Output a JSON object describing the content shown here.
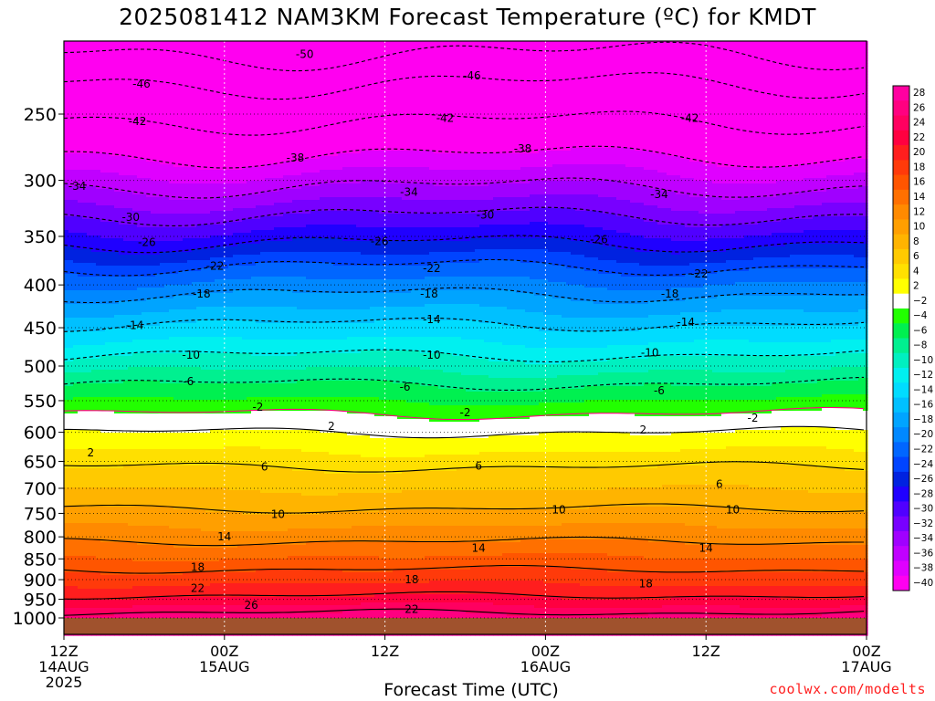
{
  "title": "2025081412 NAM3KM Forecast Temperature (ºC) for KMDT",
  "xlabel": "Forecast Time (UTC)",
  "credit": "coolwx.com/modelts",
  "chart_data": {
    "type": "heatmap",
    "title": "2025081412 NAM3KM Forecast Temperature (ºC) for KMDT",
    "xlabel": "Forecast Time (UTC)",
    "ylabel": "",
    "x_ticks": [
      {
        "hours": 0,
        "label": [
          "12Z",
          "14AUG",
          "2025"
        ]
      },
      {
        "hours": 12,
        "label": [
          "00Z",
          "15AUG"
        ]
      },
      {
        "hours": 24,
        "label": [
          "12Z"
        ]
      },
      {
        "hours": 36,
        "label": [
          "00Z",
          "16AUG"
        ]
      },
      {
        "hours": 48,
        "label": [
          "12Z"
        ]
      },
      {
        "hours": 60,
        "label": [
          "00Z",
          "17AUG"
        ]
      }
    ],
    "xlim": [
      0,
      60
    ],
    "y_ticks": [
      250,
      300,
      350,
      400,
      450,
      500,
      550,
      600,
      650,
      700,
      750,
      800,
      850,
      900,
      950,
      1000
    ],
    "ylim": [
      200,
      1025
    ],
    "y_scale": "log",
    "y_reversed": true,
    "colorbar": {
      "levels": [
        28,
        26,
        24,
        22,
        20,
        18,
        16,
        14,
        12,
        10,
        8,
        6,
        4,
        2,
        -2,
        -4,
        -6,
        -8,
        -10,
        -12,
        -14,
        -16,
        -18,
        -20,
        -22,
        -24,
        -26,
        -28,
        -30,
        -32,
        -34,
        -36,
        -38,
        -40
      ],
      "colors": [
        "#ff00a0",
        "#ff0080",
        "#ff0060",
        "#ff0040",
        "#ff1e1e",
        "#ff3a0a",
        "#ff5500",
        "#ff7000",
        "#ff8a00",
        "#ff9f00",
        "#ffb400",
        "#ffca00",
        "#ffe000",
        "#ffff00",
        "#ffffff",
        "#22ff00",
        "#00f050",
        "#00f090",
        "#00f0c0",
        "#00f0f0",
        "#00dcff",
        "#00c0ff",
        "#00a4ff",
        "#0088ff",
        "#0066ff",
        "#0044ff",
        "#0022e0",
        "#2000ff",
        "#5000ff",
        "#7800ff",
        "#a000ff",
        "#c000ff",
        "#e000ff",
        "#ff00f0"
      ]
    },
    "contours": [
      {
        "value": -50,
        "pressure": 212
      },
      {
        "value": -46,
        "pressure": 230
      },
      {
        "value": -42,
        "pressure": 255
      },
      {
        "value": -38,
        "pressure": 280
      },
      {
        "value": -34,
        "pressure": 305
      },
      {
        "value": -30,
        "pressure": 330
      },
      {
        "value": -26,
        "pressure": 356
      },
      {
        "value": -22,
        "pressure": 380
      },
      {
        "value": -18,
        "pressure": 410
      },
      {
        "value": -14,
        "pressure": 445
      },
      {
        "value": -10,
        "pressure": 485
      },
      {
        "value": -6,
        "pressure": 525
      },
      {
        "value": -2,
        "pressure": 570
      },
      {
        "value": 2,
        "pressure": 600
      },
      {
        "value": 6,
        "pressure": 660
      },
      {
        "value": 10,
        "pressure": 740
      },
      {
        "value": 14,
        "pressure": 810
      },
      {
        "value": 18,
        "pressure": 875
      },
      {
        "value": 22,
        "pressure": 940
      },
      {
        "value": 26,
        "pressure": 985
      }
    ],
    "labels": [
      {
        "text": "50",
        "hours": 18,
        "pressure": 212
      },
      {
        "text": "46",
        "hours": 5.8,
        "pressure": 230
      },
      {
        "text": "46",
        "hours": 30.5,
        "pressure": 225
      },
      {
        "text": "42",
        "hours": 5.5,
        "pressure": 255
      },
      {
        "text": "42",
        "hours": 28.5,
        "pressure": 253
      },
      {
        "text": "42",
        "hours": 46.8,
        "pressure": 253
      },
      {
        "text": "38",
        "hours": 17.3,
        "pressure": 282
      },
      {
        "text": "38",
        "hours": 34.3,
        "pressure": 275
      },
      {
        "text": "34",
        "hours": 1.0,
        "pressure": 305
      },
      {
        "text": "34",
        "hours": 25.8,
        "pressure": 310
      },
      {
        "text": "34",
        "hours": 44.5,
        "pressure": 312
      },
      {
        "text": "30",
        "hours": 5.0,
        "pressure": 332
      },
      {
        "text": "30",
        "hours": 31.5,
        "pressure": 330
      },
      {
        "text": "26",
        "hours": 6.2,
        "pressure": 356
      },
      {
        "text": "26",
        "hours": 23.6,
        "pressure": 355
      },
      {
        "text": "26",
        "hours": 40.0,
        "pressure": 353
      },
      {
        "text": "22",
        "hours": 11.3,
        "pressure": 380
      },
      {
        "text": "22",
        "hours": 27.5,
        "pressure": 382
      },
      {
        "text": "22",
        "hours": 47.5,
        "pressure": 388
      },
      {
        "text": "18",
        "hours": 10.3,
        "pressure": 410
      },
      {
        "text": "18",
        "hours": 27.3,
        "pressure": 410
      },
      {
        "text": "18",
        "hours": 45.3,
        "pressure": 410
      },
      {
        "text": "14",
        "hours": 5.3,
        "pressure": 447
      },
      {
        "text": "14",
        "hours": 27.5,
        "pressure": 440
      },
      {
        "text": "14",
        "hours": 46.5,
        "pressure": 443
      },
      {
        "text": "10",
        "hours": 9.5,
        "pressure": 485
      },
      {
        "text": "10",
        "hours": 27.5,
        "pressure": 485
      },
      {
        "text": "10",
        "hours": 43.8,
        "pressure": 482
      },
      {
        "text": "6",
        "hours": 9.3,
        "pressure": 522
      },
      {
        "text": "6",
        "hours": 25.5,
        "pressure": 530
      },
      {
        "text": "6",
        "hours": 44.5,
        "pressure": 535
      },
      {
        "text": "2",
        "hours": 14.5,
        "pressure": 560
      },
      {
        "text": "2",
        "hours": 30.0,
        "pressure": 568
      },
      {
        "text": "2",
        "hours": 51.5,
        "pressure": 577
      },
      {
        "text": "2",
        "hours": 2.0,
        "pressure": 635
      },
      {
        "text": "2",
        "hours": 20.0,
        "pressure": 590
      },
      {
        "text": "2",
        "hours": 43.3,
        "pressure": 596
      },
      {
        "text": "6",
        "hours": 15.0,
        "pressure": 660
      },
      {
        "text": "6",
        "hours": 31.0,
        "pressure": 658
      },
      {
        "text": "6",
        "hours": 49.0,
        "pressure": 692
      },
      {
        "text": "10",
        "hours": 16.0,
        "pressure": 752
      },
      {
        "text": "10",
        "hours": 37.0,
        "pressure": 743
      },
      {
        "text": "10",
        "hours": 50.0,
        "pressure": 743
      },
      {
        "text": "14",
        "hours": 12.0,
        "pressure": 800
      },
      {
        "text": "14",
        "hours": 31.0,
        "pressure": 825
      },
      {
        "text": "14",
        "hours": 48.0,
        "pressure": 825
      },
      {
        "text": "18",
        "hours": 10.0,
        "pressure": 870
      },
      {
        "text": "18",
        "hours": 26.0,
        "pressure": 900
      },
      {
        "text": "18",
        "hours": 43.5,
        "pressure": 910
      },
      {
        "text": "22",
        "hours": 10.0,
        "pressure": 922
      },
      {
        "text": "22",
        "hours": 26.0,
        "pressure": 977
      },
      {
        "text": "26",
        "hours": 14.0,
        "pressure": 965
      }
    ],
    "ground": {
      "pressure_top": 1000,
      "color": "#a0522d"
    }
  }
}
